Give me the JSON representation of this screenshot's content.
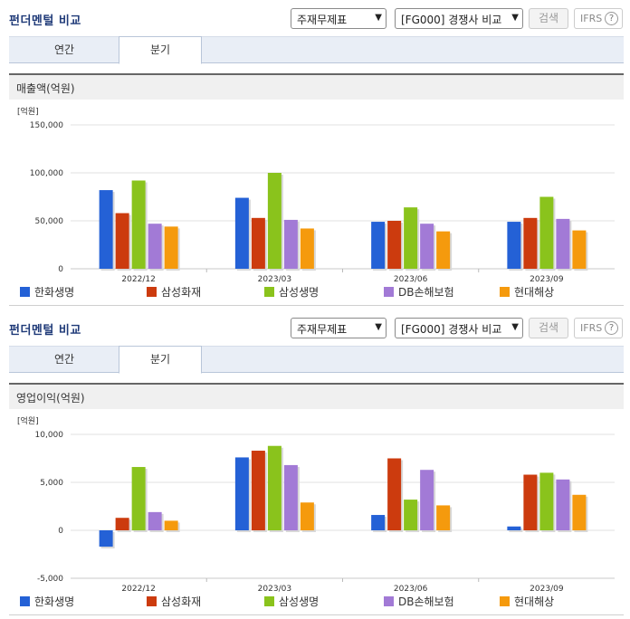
{
  "sections": [
    {
      "title": "펀더멘털 비교",
      "select1": "주재무제표",
      "select2": "[FG000] 경쟁사 비교",
      "search": "검색",
      "ifrs": "IFRS",
      "tabs": [
        "연간",
        "분기"
      ],
      "chart_heading": "매출액(억원)"
    },
    {
      "title": "펀더멘털 비교",
      "select1": "주재무제표",
      "select2": "[FG000] 경쟁사 비교",
      "search": "검색",
      "ifrs": "IFRS",
      "tabs": [
        "연간",
        "분기"
      ],
      "chart_heading": "영업이익(억원)"
    }
  ],
  "legend": [
    "한화생명",
    "삼성화재",
    "삼성생명",
    "DB손해보험",
    "현대해상"
  ],
  "colors": [
    "#2461d6",
    "#cc3b0e",
    "#8ac31c",
    "#a27ad6",
    "#f59a0d"
  ],
  "chart_data": [
    {
      "type": "bar",
      "unit": "[억원]",
      "categories": [
        "2022/12",
        "2023/03",
        "2023/06",
        "2023/09"
      ],
      "ylim": [
        0,
        150000
      ],
      "yticks": [
        0,
        50000,
        100000,
        150000
      ],
      "ytick_labels": [
        "0",
        "50,000",
        "100,000",
        "150,000"
      ],
      "series": [
        {
          "name": "한화생명",
          "values": [
            82000,
            74000,
            49000,
            49000
          ]
        },
        {
          "name": "삼성화재",
          "values": [
            58000,
            53000,
            50000,
            53000
          ]
        },
        {
          "name": "삼성생명",
          "values": [
            92000,
            100000,
            64000,
            75000
          ]
        },
        {
          "name": "DB손해보험",
          "values": [
            47000,
            51000,
            47000,
            52000
          ]
        },
        {
          "name": "현대해상",
          "values": [
            44000,
            42000,
            39000,
            40000
          ]
        }
      ]
    },
    {
      "type": "bar",
      "unit": "[억원]",
      "categories": [
        "2022/12",
        "2023/03",
        "2023/06",
        "2023/09"
      ],
      "ylim": [
        -5000,
        10000
      ],
      "yticks": [
        -5000,
        0,
        5000,
        10000
      ],
      "ytick_labels": [
        "-5,000",
        "0",
        "5,000",
        "10,000"
      ],
      "series": [
        {
          "name": "한화생명",
          "values": [
            -1700,
            7600,
            1600,
            400
          ]
        },
        {
          "name": "삼성화재",
          "values": [
            1300,
            8300,
            7500,
            5800
          ]
        },
        {
          "name": "삼성생명",
          "values": [
            6600,
            8800,
            3200,
            6000
          ]
        },
        {
          "name": "DB손해보험",
          "values": [
            1900,
            6800,
            6300,
            5300
          ]
        },
        {
          "name": "현대해상",
          "values": [
            1000,
            2900,
            2600,
            3700
          ]
        }
      ]
    }
  ]
}
